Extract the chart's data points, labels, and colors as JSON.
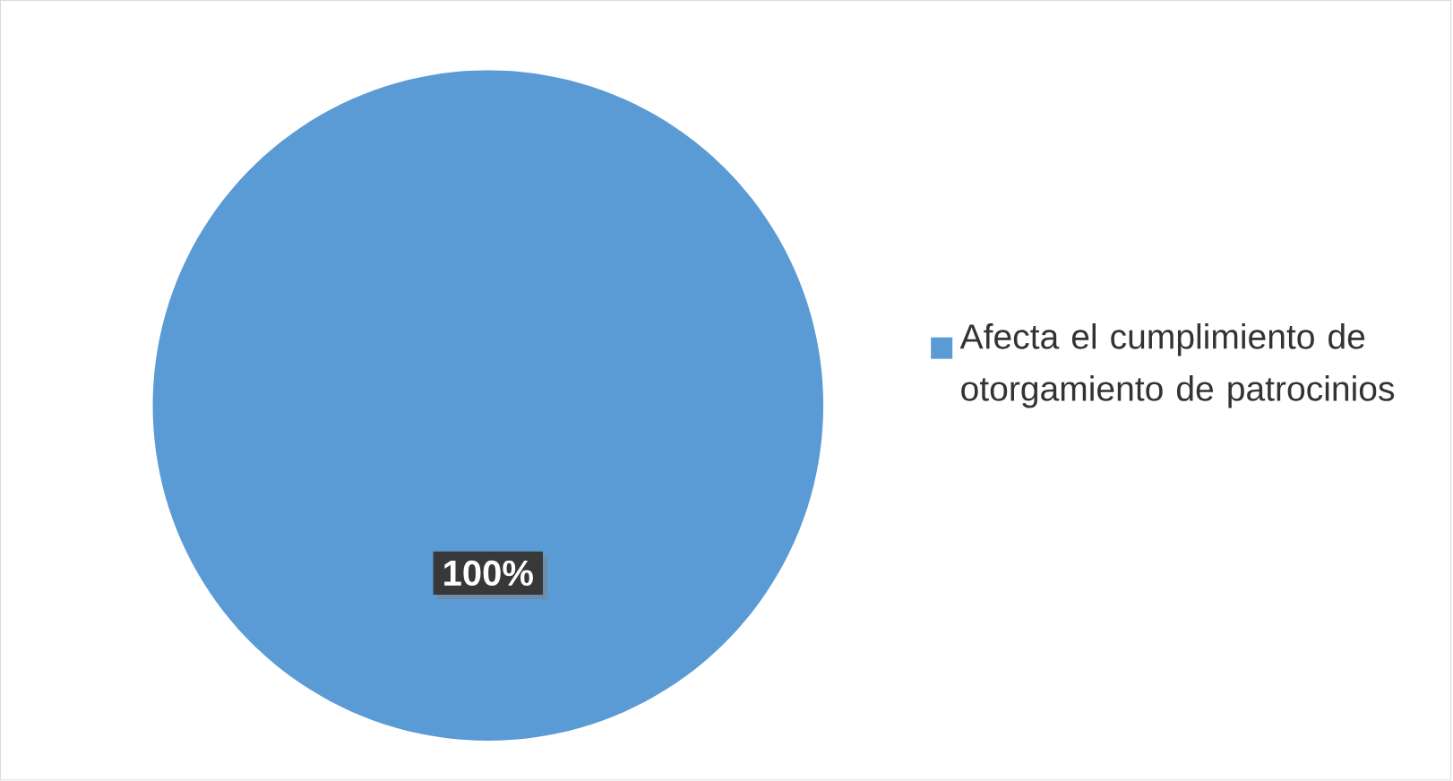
{
  "chart_data": {
    "type": "pie",
    "categories": [
      "Afecta el cumplimiento de otorgamiento de patrocinios"
    ],
    "values": [
      100
    ],
    "colors": [
      "#5b9bd5"
    ],
    "value_labels": [
      "100%"
    ],
    "legend": "right"
  }
}
